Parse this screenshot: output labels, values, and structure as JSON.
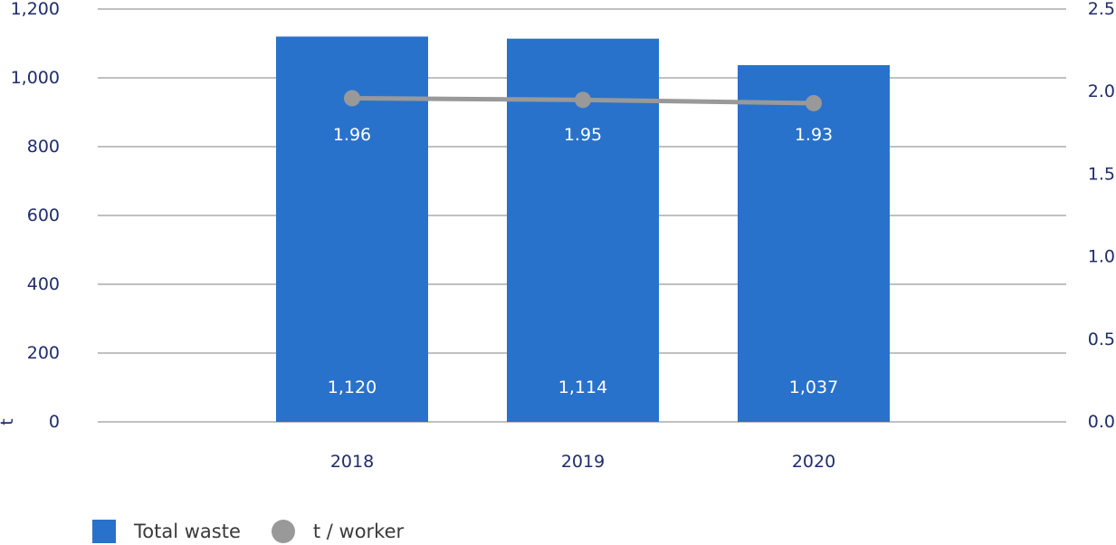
{
  "colors": {
    "bar": "#2872cc",
    "line": "#999999",
    "grid": "#9a9a9a",
    "text": "#1f2d6b"
  },
  "chart_data": {
    "type": "bar",
    "categories": [
      "2018",
      "2019",
      "2020"
    ],
    "series": [
      {
        "name": "Total waste",
        "type": "bar",
        "axis": "left",
        "values": [
          1120,
          1114,
          1037
        ],
        "labels": [
          "1,120",
          "1,114",
          "1,037"
        ]
      },
      {
        "name": "t / worker",
        "type": "line",
        "axis": "right",
        "values": [
          1.96,
          1.95,
          1.93
        ],
        "labels": [
          "1.96",
          "1.95",
          "1.93"
        ]
      }
    ],
    "ylabel": "t",
    "ylim": [
      0,
      1200
    ],
    "y2lim": [
      0,
      2.5
    ],
    "yticks": [
      "0",
      "200",
      "400",
      "600",
      "800",
      "1,000",
      "1,200"
    ],
    "y2ticks": [
      "0.0",
      "0.5",
      "1.0",
      "1.5",
      "2.0",
      "2.5"
    ],
    "grid": true,
    "legend_position": "bottom-left"
  }
}
